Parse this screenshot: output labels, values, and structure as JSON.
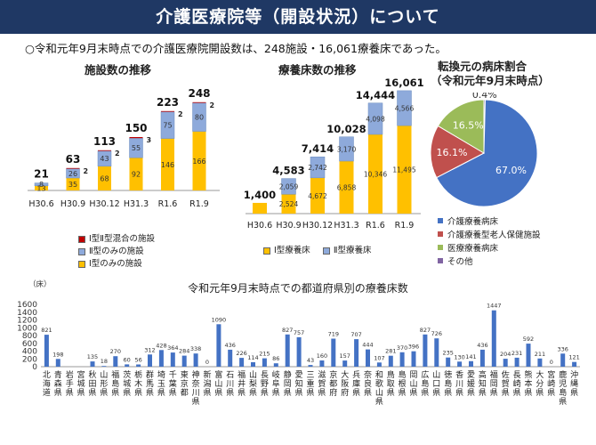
{
  "page": {
    "title": "介護医療院等（開設状況）について",
    "summary": "○令和元年9月末時点での介護医療院開設数は、248施設・16,061療養床であった。"
  },
  "facility_chart_title": "施設数の推移",
  "bed_chart_title": "療養床数の推移",
  "pie_title_line1": "転換元の病床割合",
  "pie_title_line2": "（令和元年9月末時点）",
  "facility_legend": [
    "Ⅰ型Ⅱ型混合の施設",
    "Ⅱ型のみの施設",
    "Ⅰ型のみの施設"
  ],
  "bed_legend": [
    "Ⅰ型療養床",
    "Ⅱ型療養床"
  ],
  "pie_legend": [
    "介護療養病床",
    "介護療養型老人保健施設",
    "医療療養病床",
    "その他"
  ],
  "colors": {
    "banner": "#1f3864",
    "type1": "#ffc000",
    "type2": "#8eaadb",
    "mixed": "#c00000",
    "blue": "#4472c4",
    "red": "#c0504d",
    "green": "#9bbb59",
    "purple": "#8064a2"
  },
  "chart_data": [
    {
      "type": "bar",
      "stacked": true,
      "title": "施設数の推移",
      "categories": [
        "H30.6",
        "H30.9",
        "H30.12",
        "H31.3",
        "R1.6",
        "R1.9"
      ],
      "series": [
        {
          "name": "Ⅰ型のみの施設",
          "values": [
            13,
            35,
            68,
            92,
            146,
            166
          ]
        },
        {
          "name": "Ⅱ型のみの施設",
          "values": [
            8,
            26,
            43,
            55,
            75,
            80
          ]
        },
        {
          "name": "Ⅰ型Ⅱ型混合の施設",
          "values": [
            0,
            2,
            2,
            3,
            2,
            2
          ]
        }
      ],
      "totals": [
        21,
        63,
        113,
        150,
        223,
        248
      ]
    },
    {
      "type": "bar",
      "stacked": true,
      "title": "療養床数の推移",
      "categories": [
        "H30.6",
        "H30.9",
        "H30.12",
        "H31.3",
        "R1.6",
        "R1.9"
      ],
      "series": [
        {
          "name": "Ⅰ型療養床",
          "values": [
            1400,
            2524,
            4672,
            6858,
            10346,
            11495
          ]
        },
        {
          "name": "Ⅱ型療養床",
          "values": [
            0,
            2059,
            2742,
            3170,
            4098,
            4566
          ]
        }
      ],
      "totals": [
        1400,
        4583,
        7414,
        10028,
        14444,
        16061
      ],
      "total_labels": [
        "1,400",
        "4,583",
        "7,414",
        "10,028",
        "14,444",
        "16,061"
      ],
      "series_labels": [
        [
          "",
          "2,524",
          "4,672",
          "6,858",
          "10,346",
          "11,495"
        ],
        [
          "",
          "2,059",
          "2,742",
          "3,170",
          "4,098",
          "4,566"
        ]
      ]
    },
    {
      "type": "pie",
      "title": "転換元の病床割合（令和元年9月末時点）",
      "labels": [
        "介護療養病床",
        "介護療養型老人保健施設",
        "医療療養病床",
        "その他"
      ],
      "values": [
        67.0,
        16.1,
        16.5,
        0.4
      ],
      "value_labels": [
        "67.0%",
        "16.1%",
        "16.5%",
        "0.4%"
      ]
    },
    {
      "type": "bar",
      "title": "令和元年9月末時点での都道府県別の療養床数",
      "ylabel": "（床）",
      "ylim": [
        0,
        1600
      ],
      "yticks": [
        0,
        200,
        400,
        600,
        800,
        1000,
        1200,
        1400,
        1600
      ],
      "categories": [
        "北海道",
        "青森県",
        "岩手県",
        "宮城県",
        "秋田県",
        "山形県",
        "福島県",
        "茨城県",
        "栃木県",
        "群馬県",
        "埼玉県",
        "千葉県",
        "東京都",
        "神奈川県",
        "新潟県",
        "富山県",
        "石川県",
        "福井県",
        "山梨県",
        "長野県",
        "岐阜県",
        "静岡県",
        "愛知県",
        "三重県",
        "滋賀県",
        "京都府",
        "大阪府",
        "兵庫県",
        "奈良県",
        "和歌山県",
        "鳥取県",
        "島根県",
        "岡山県",
        "広島県",
        "山口県",
        "徳島県",
        "香川県",
        "愛媛県",
        "高知県",
        "福岡県",
        "佐賀県",
        "長崎県",
        "熊本県",
        "大分県",
        "宮崎県",
        "鹿児島県",
        "沖縄県"
      ],
      "values": [
        821,
        198,
        0,
        0,
        135,
        18,
        270,
        60,
        56,
        312,
        428,
        364,
        284,
        338,
        0,
        1090,
        436,
        226,
        114,
        215,
        86,
        827,
        757,
        43,
        160,
        719,
        157,
        707,
        444,
        107,
        281,
        370,
        396,
        827,
        726,
        235,
        130,
        141,
        436,
        1447,
        204,
        231,
        592,
        211,
        0,
        336,
        121
      ],
      "value_labels": [
        "821",
        "198",
        "",
        "",
        "135",
        "18",
        "270",
        "60",
        "56",
        "312",
        "428",
        "364",
        "284",
        "338",
        "0",
        "1090",
        "436",
        "226",
        "114",
        "215",
        "86",
        "827",
        "757",
        "43",
        "160",
        "719",
        "157",
        "707",
        "444",
        "107",
        "281",
        "370",
        "396",
        "827",
        "726",
        "235",
        "130",
        "141",
        "436",
        "1447",
        "204",
        "231",
        "592",
        "211",
        "0",
        "336",
        "121"
      ]
    }
  ]
}
